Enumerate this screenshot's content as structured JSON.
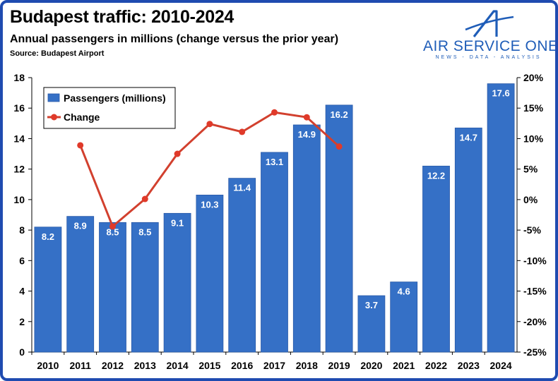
{
  "header": {
    "title": "Budapest traffic: 2010-2024",
    "subtitle": "Annual passengers in millions (change versus the prior year)",
    "source": "Source: Budapest Airport"
  },
  "brand": {
    "name": "AIR SERVICE ONE",
    "tagline": "NEWS - DATA - ANALYSIS",
    "logo_icon": "a-swoosh-logo-icon"
  },
  "colors": {
    "frame": "#1f4bb0",
    "bar": "#3570c6",
    "bar_edge": "#2a5aa8",
    "line": "#d2402e",
    "marker": "#e03a2a"
  },
  "chart_data": {
    "type": "bar",
    "categories": [
      "2010",
      "2011",
      "2012",
      "2013",
      "2014",
      "2015",
      "2016",
      "2017",
      "2018",
      "2019",
      "2020",
      "2021",
      "2022",
      "2023",
      "2024"
    ],
    "series": [
      {
        "name": "Passengers (millions)",
        "type": "bar",
        "axis": "left",
        "values": [
          8.2,
          8.9,
          8.5,
          8.5,
          9.1,
          10.3,
          11.4,
          13.1,
          14.9,
          16.2,
          3.7,
          4.6,
          12.2,
          14.7,
          17.6
        ],
        "labels": [
          "8.2",
          "8.9",
          "8.5",
          "8.5",
          "9.1",
          "10.3",
          "11.4",
          "13.1",
          "14.9",
          "16.2",
          "3.7",
          "4.6",
          "12.2",
          "14.7",
          "17.6"
        ]
      },
      {
        "name": "Change",
        "type": "line",
        "axis": "right",
        "values": [
          null,
          8.9,
          -4.4,
          0.1,
          7.5,
          12.4,
          11.1,
          14.3,
          13.5,
          8.7,
          null,
          null,
          null,
          null,
          null
        ]
      }
    ],
    "y_left": {
      "min": 0,
      "max": 18,
      "step": 2,
      "ticks": [
        "0",
        "2",
        "4",
        "6",
        "8",
        "10",
        "12",
        "14",
        "16",
        "18"
      ]
    },
    "y_right": {
      "min": -25,
      "max": 20,
      "step": 5,
      "ticks": [
        "-25%",
        "-20%",
        "-15%",
        "-10%",
        "-5%",
        "0%",
        "5%",
        "10%",
        "15%",
        "20%"
      ]
    },
    "legend": {
      "position": "top-left"
    },
    "grid": false
  }
}
